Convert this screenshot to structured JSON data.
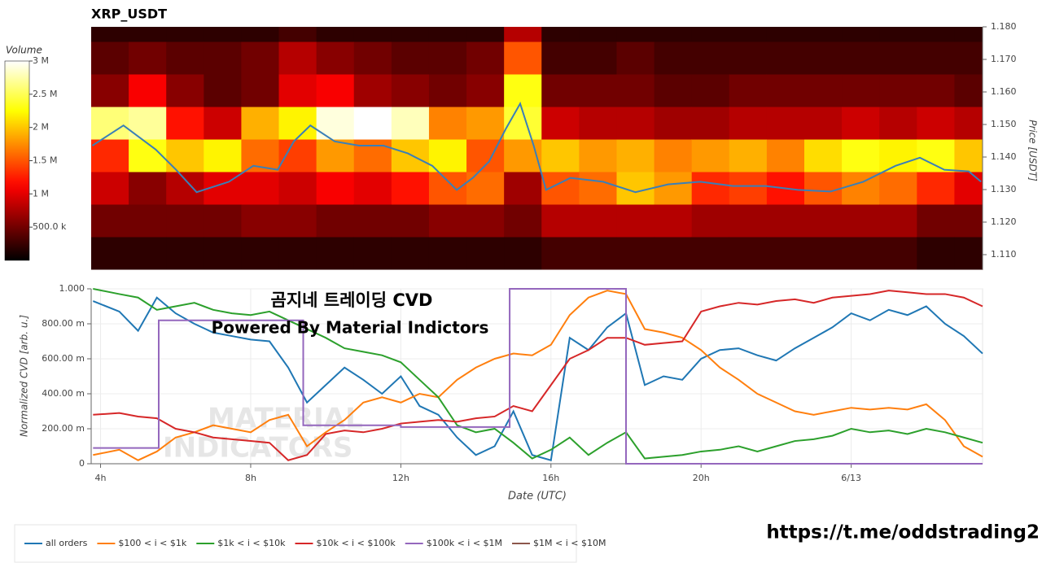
{
  "chart_data": [
    {
      "type": "heatmap",
      "title": "XRP_USDT",
      "colorbar_title": "Volume",
      "ylabel": "Price [USDT]",
      "colormap": "hot",
      "xlim": [
        3.75,
        27.5
      ],
      "time_bins": [
        3.75,
        4.75,
        5.75,
        6.75,
        7.75,
        8.75,
        9.75,
        10.75,
        11.75,
        12.75,
        13.75,
        14.75,
        15.75,
        16.75,
        17.75,
        18.75,
        19.75,
        20.75,
        21.75,
        22.75,
        23.75,
        24.75,
        25.75,
        26.75,
        27.5
      ],
      "price_bins": [
        1.1055,
        1.1155,
        1.1255,
        1.1355,
        1.1455,
        1.1555,
        1.1655,
        1.1755,
        1.18
      ],
      "values": [
        [
          0.2,
          0.5,
          0.9,
          1.3,
          2.6,
          0.6,
          0.4,
          0.2
        ],
        [
          0.2,
          0.5,
          0.6,
          2.3,
          2.7,
          1.1,
          0.5,
          0.2
        ],
        [
          0.2,
          0.5,
          0.8,
          2.0,
          1.2,
          0.6,
          0.4,
          0.2
        ],
        [
          0.2,
          0.5,
          1.0,
          2.2,
          0.9,
          0.4,
          0.4,
          0.2
        ],
        [
          0.2,
          0.6,
          1.0,
          1.6,
          1.9,
          0.5,
          0.5,
          0.2
        ],
        [
          0.2,
          0.6,
          0.9,
          1.4,
          2.2,
          1.0,
          0.8,
          0.3
        ],
        [
          0.2,
          0.5,
          1.1,
          1.8,
          2.9,
          1.1,
          0.6,
          0.2
        ],
        [
          0.2,
          0.5,
          1.0,
          1.6,
          3.0,
          0.7,
          0.5,
          0.2
        ],
        [
          0.2,
          0.5,
          1.2,
          2.0,
          2.8,
          0.6,
          0.4,
          0.2
        ],
        [
          0.2,
          0.6,
          1.5,
          2.2,
          1.7,
          0.5,
          0.4,
          0.2
        ],
        [
          0.2,
          0.6,
          1.6,
          1.5,
          1.8,
          0.6,
          0.5,
          0.2
        ],
        [
          0.2,
          0.5,
          0.7,
          1.8,
          2.4,
          2.3,
          1.5,
          0.8
        ],
        [
          0.3,
          0.8,
          1.5,
          2.0,
          0.9,
          0.5,
          0.3,
          0.2
        ],
        [
          0.3,
          0.8,
          1.6,
          1.8,
          0.8,
          0.5,
          0.3,
          0.2
        ],
        [
          0.3,
          0.8,
          2.0,
          1.9,
          0.8,
          0.5,
          0.4,
          0.2
        ],
        [
          0.3,
          0.8,
          1.8,
          1.7,
          0.7,
          0.4,
          0.3,
          0.2
        ],
        [
          0.3,
          0.7,
          1.3,
          1.8,
          0.7,
          0.4,
          0.3,
          0.2
        ],
        [
          0.3,
          0.7,
          1.4,
          1.9,
          0.8,
          0.5,
          0.3,
          0.2
        ],
        [
          0.3,
          0.7,
          1.2,
          1.7,
          0.8,
          0.5,
          0.3,
          0.2
        ],
        [
          0.3,
          0.7,
          1.5,
          2.1,
          0.8,
          0.5,
          0.3,
          0.2
        ],
        [
          0.3,
          0.7,
          1.7,
          2.3,
          0.9,
          0.5,
          0.3,
          0.2
        ],
        [
          0.3,
          0.7,
          1.6,
          2.2,
          0.8,
          0.5,
          0.3,
          0.2
        ],
        [
          0.2,
          0.5,
          1.3,
          2.3,
          0.9,
          0.5,
          0.3,
          0.2
        ],
        [
          0.2,
          0.5,
          1.0,
          2.0,
          0.8,
          0.4,
          0.3,
          0.2
        ]
      ],
      "clim": [
        0,
        3.0
      ],
      "cticks": [
        {
          "value": 0.5,
          "label": "500.0 k"
        },
        {
          "value": 1,
          "label": "1 M"
        },
        {
          "value": 1.5,
          "label": "1.5 M"
        },
        {
          "value": 2,
          "label": "2 M"
        },
        {
          "value": 2.5,
          "label": "2.5 M"
        },
        {
          "value": 3,
          "label": "3 M"
        }
      ],
      "ylim": [
        1.1055,
        1.18
      ],
      "yticks": [
        {
          "value": 1.11,
          "label": "1.110"
        },
        {
          "value": 1.12,
          "label": "1.120"
        },
        {
          "value": 1.13,
          "label": "1.130"
        },
        {
          "value": 1.14,
          "label": "1.140"
        },
        {
          "value": 1.15,
          "label": "1.150"
        },
        {
          "value": 1.16,
          "label": "1.160"
        },
        {
          "value": 1.17,
          "label": "1.170"
        },
        {
          "value": 1.18,
          "label": "1.180"
        }
      ],
      "price": {
        "color": "#3a7fb8",
        "x": [
          3.78,
          4.61,
          5.47,
          6.01,
          6.56,
          7.42,
          8.07,
          8.72,
          9.15,
          9.59,
          10.24,
          10.89,
          11.54,
          12.19,
          12.84,
          13.49,
          13.92,
          14.35,
          14.79,
          15.18,
          15.54,
          15.87,
          16.52,
          17.39,
          18.25,
          19.12,
          19.98,
          20.85,
          21.72,
          22.58,
          23.45,
          24.32,
          25.18,
          25.83,
          26.48,
          27.13,
          27.46
        ],
        "values": [
          1.1435,
          1.1497,
          1.1423,
          1.1361,
          1.1292,
          1.1324,
          1.1373,
          1.1361,
          1.1448,
          1.1497,
          1.1448,
          1.1435,
          1.1435,
          1.1411,
          1.1373,
          1.1299,
          1.1336,
          1.1386,
          1.1485,
          1.1564,
          1.1435,
          1.1299,
          1.1336,
          1.1324,
          1.1292,
          1.1316,
          1.1324,
          1.1311,
          1.1311,
          1.1299,
          1.1294,
          1.1324,
          1.1373,
          1.1398,
          1.1361,
          1.1356,
          1.1324
        ]
      }
    },
    {
      "type": "line",
      "ylabel": "Normalized CVD [arb. u.]",
      "xlabel": "Date (UTC)",
      "annotations": [
        "곰지네 트레이딩 CVD",
        "Powered By Material Indictors"
      ],
      "watermark": [
        "MATERIAL",
        "INDICATORS"
      ],
      "xlim": [
        3.75,
        27.5
      ],
      "xticks": [
        {
          "value": 4,
          "label": "4h"
        },
        {
          "value": 8,
          "label": "8h"
        },
        {
          "value": 12,
          "label": "12h"
        },
        {
          "value": 16,
          "label": "16h"
        },
        {
          "value": 20,
          "label": "20h"
        },
        {
          "value": 24,
          "label": "6/13"
        }
      ],
      "ylim": [
        0,
        1
      ],
      "yticks": [
        0,
        {
          "value": 0.2,
          "label": "200.00 m"
        },
        {
          "value": 0.4,
          "label": "400.00 m"
        },
        {
          "value": 0.6,
          "label": "600.00 m"
        },
        {
          "value": 0.8,
          "label": "800.00 m"
        },
        {
          "value": 1,
          "label": "1.000"
        }
      ],
      "grid": true,
      "x": [
        3.8,
        4.5,
        5.0,
        5.5,
        6.0,
        6.5,
        7.0,
        7.5,
        8.0,
        8.5,
        9.0,
        9.5,
        10.0,
        10.5,
        11.0,
        11.5,
        12.0,
        12.5,
        13.0,
        13.5,
        14.0,
        14.5,
        15.0,
        15.5,
        16.0,
        16.5,
        17.0,
        17.5,
        18.0,
        18.5,
        19.0,
        19.5,
        20.0,
        20.5,
        21.0,
        21.5,
        22.0,
        22.5,
        23.0,
        23.5,
        24.0,
        24.5,
        25.0,
        25.5,
        26.0,
        26.5,
        27.0,
        27.5
      ],
      "series": [
        {
          "name": "all orders",
          "color": "#1f77b4",
          "values": [
            0.93,
            0.87,
            0.76,
            0.95,
            0.86,
            0.8,
            0.75,
            0.73,
            0.71,
            0.7,
            0.55,
            0.35,
            0.45,
            0.55,
            0.48,
            0.4,
            0.5,
            0.33,
            0.28,
            0.15,
            0.05,
            0.1,
            0.3,
            0.05,
            0.02,
            0.72,
            0.65,
            0.78,
            0.86,
            0.45,
            0.5,
            0.48,
            0.6,
            0.65,
            0.66,
            0.62,
            0.59,
            0.66,
            0.72,
            0.78,
            0.86,
            0.82,
            0.88,
            0.85,
            0.9,
            0.8,
            0.73,
            0.63
          ]
        },
        {
          "name": "$100 < i < $1k",
          "color": "#ff7f0e",
          "values": [
            0.05,
            0.08,
            0.02,
            0.07,
            0.15,
            0.18,
            0.22,
            0.2,
            0.18,
            0.25,
            0.28,
            0.1,
            0.18,
            0.25,
            0.35,
            0.38,
            0.35,
            0.4,
            0.38,
            0.48,
            0.55,
            0.6,
            0.63,
            0.62,
            0.68,
            0.85,
            0.95,
            0.99,
            0.97,
            0.77,
            0.75,
            0.72,
            0.65,
            0.55,
            0.48,
            0.4,
            0.35,
            0.3,
            0.28,
            0.3,
            0.32,
            0.31,
            0.32,
            0.31,
            0.34,
            0.25,
            0.1,
            0.04
          ]
        },
        {
          "name": "$1k < i < $10k",
          "color": "#2ca02c",
          "values": [
            1.0,
            0.97,
            0.95,
            0.88,
            0.9,
            0.92,
            0.88,
            0.86,
            0.85,
            0.87,
            0.82,
            0.77,
            0.72,
            0.66,
            0.64,
            0.62,
            0.58,
            0.48,
            0.38,
            0.22,
            0.18,
            0.2,
            0.12,
            0.03,
            0.08,
            0.15,
            0.05,
            0.12,
            0.18,
            0.03,
            0.04,
            0.05,
            0.07,
            0.08,
            0.1,
            0.07,
            0.1,
            0.13,
            0.14,
            0.16,
            0.2,
            0.18,
            0.19,
            0.17,
            0.2,
            0.18,
            0.15,
            0.12
          ]
        },
        {
          "name": "$10k < i < $100k",
          "color": "#d62728",
          "values": [
            0.28,
            0.29,
            0.27,
            0.26,
            0.2,
            0.18,
            0.15,
            0.14,
            0.13,
            0.12,
            0.02,
            0.05,
            0.17,
            0.19,
            0.18,
            0.2,
            0.23,
            0.24,
            0.25,
            0.24,
            0.26,
            0.27,
            0.33,
            0.3,
            0.45,
            0.6,
            0.65,
            0.72,
            0.72,
            0.68,
            0.69,
            0.7,
            0.87,
            0.9,
            0.92,
            0.91,
            0.93,
            0.94,
            0.92,
            0.95,
            0.96,
            0.97,
            0.99,
            0.98,
            0.97,
            0.97,
            0.95,
            0.9
          ]
        },
        {
          "name": "$100k < i < $1M",
          "color": "#9467bd",
          "x": [
            3.8,
            5.55,
            5.55,
            9.4,
            9.4,
            12.0,
            12.0,
            14.9,
            14.9,
            18.0,
            18.0,
            27.5
          ],
          "values": [
            0.09,
            0.09,
            0.82,
            0.82,
            0.22,
            0.22,
            0.21,
            0.21,
            1.0,
            1.0,
            0,
            0
          ]
        },
        {
          "name": "$1M < i < $10M",
          "color": "#8c564b",
          "x": [],
          "values": []
        }
      ]
    }
  ],
  "footer": "https://t.me/oddstrading2"
}
